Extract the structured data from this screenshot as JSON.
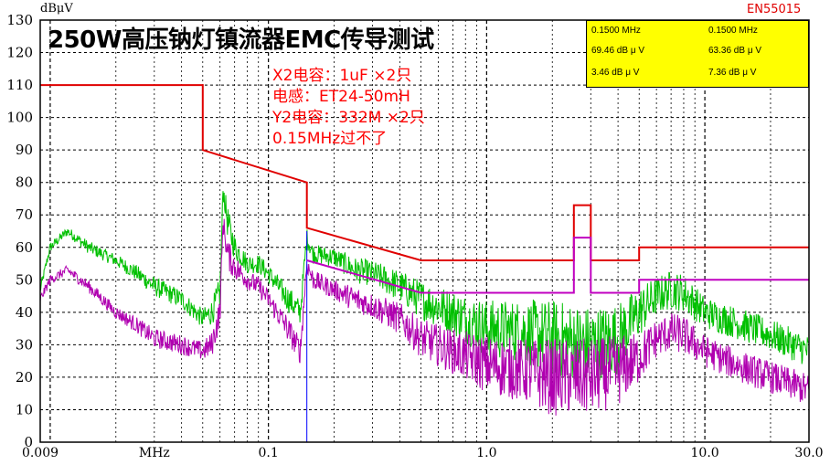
{
  "header": {
    "unit_label": "dBμV",
    "title": "250W高压钠灯镇流器EMC传导测试",
    "standard": "EN55015"
  },
  "annotation": {
    "lines": [
      "X2电容：1uF ×2只",
      "电感：ET24-50mH",
      "Y2电容：332M ×2只",
      "0.15MHz过不了"
    ]
  },
  "marker_box": {
    "col1": [
      "0.1500 MHz",
      "69.46 dB μ V",
      "3.46 dB μ V"
    ],
    "col2": [
      "0.1500 MHz",
      "63.36 dB μ V",
      "7.36 dB μ V"
    ]
  },
  "colors": {
    "qp_limit": "#e00000",
    "avg_limit": "#c000c0",
    "qp_trace": "#00c000",
    "avg_trace": "#b000b0",
    "marker_line": "#0000ff",
    "marker_box_bg": "#ffff00"
  },
  "chart_data": {
    "type": "line",
    "x_scale": "log",
    "xlim": [
      0.009,
      30.0
    ],
    "ylim": [
      0,
      130
    ],
    "yticks": [
      0,
      10,
      20,
      30,
      40,
      50,
      60,
      70,
      80,
      90,
      100,
      110,
      120,
      130
    ],
    "xtick_labels": [
      {
        "x": 0.009,
        "label": "0.009"
      },
      {
        "x": 0.03,
        "label": "MHz"
      },
      {
        "x": 0.1,
        "label": "0.1"
      },
      {
        "x": 1.0,
        "label": "1.0"
      },
      {
        "x": 10.0,
        "label": "10.0"
      },
      {
        "x": 30.0,
        "label": "30.0"
      }
    ],
    "grid": true,
    "marker_x": 0.15,
    "series": [
      {
        "key": "qp_limit",
        "type": "step",
        "points": [
          [
            0.009,
            110
          ],
          [
            0.05,
            110
          ],
          [
            0.05,
            90
          ],
          [
            0.15,
            80
          ],
          [
            0.15,
            66
          ],
          [
            0.5,
            56
          ],
          [
            2.51,
            56
          ],
          [
            2.51,
            73
          ],
          [
            3.0,
            73
          ],
          [
            3.0,
            56
          ],
          [
            5.0,
            56
          ],
          [
            5.0,
            60
          ],
          [
            30.0,
            60
          ]
        ]
      },
      {
        "key": "avg_limit",
        "type": "step",
        "points": [
          [
            0.15,
            56
          ],
          [
            0.5,
            46
          ],
          [
            2.51,
            46
          ],
          [
            2.51,
            63
          ],
          [
            3.0,
            63
          ],
          [
            3.0,
            46
          ],
          [
            5.0,
            46
          ],
          [
            5.0,
            50
          ],
          [
            30.0,
            50
          ]
        ]
      },
      {
        "key": "qp_trace",
        "type": "trace",
        "points": [
          [
            0.009,
            47
          ],
          [
            0.01,
            60
          ],
          [
            0.012,
            65
          ],
          [
            0.015,
            60
          ],
          [
            0.02,
            56
          ],
          [
            0.025,
            52
          ],
          [
            0.03,
            48
          ],
          [
            0.04,
            44
          ],
          [
            0.05,
            38
          ],
          [
            0.055,
            40
          ],
          [
            0.06,
            46
          ],
          [
            0.062,
            78
          ],
          [
            0.065,
            68
          ],
          [
            0.07,
            60
          ],
          [
            0.08,
            55
          ],
          [
            0.09,
            55
          ],
          [
            0.1,
            52
          ],
          [
            0.12,
            45
          ],
          [
            0.14,
            40
          ],
          [
            0.15,
            63
          ],
          [
            0.16,
            58
          ],
          [
            0.2,
            57
          ],
          [
            0.25,
            53
          ],
          [
            0.3,
            52
          ],
          [
            0.4,
            48
          ],
          [
            0.5,
            44
          ],
          [
            0.7,
            40
          ],
          [
            1.0,
            35
          ],
          [
            1.5,
            34
          ],
          [
            2.0,
            32
          ],
          [
            3.0,
            30
          ],
          [
            4.0,
            32
          ],
          [
            5.0,
            40
          ],
          [
            6.0,
            45
          ],
          [
            7.0,
            47
          ],
          [
            8.0,
            46
          ],
          [
            10.0,
            40
          ],
          [
            15.0,
            36
          ],
          [
            20.0,
            33
          ],
          [
            30.0,
            28
          ]
        ],
        "noise": [
          1.5,
          1.5,
          1.5,
          2,
          2,
          2.5,
          3,
          3,
          3,
          4,
          5,
          3,
          5,
          4,
          3,
          3,
          3,
          4,
          4,
          3,
          3,
          3,
          4,
          4,
          5,
          6,
          7,
          9,
          10,
          12,
          12,
          11,
          8,
          6,
          6,
          6,
          5,
          5,
          5,
          5
        ]
      },
      {
        "key": "avg_trace",
        "type": "trace",
        "points": [
          [
            0.009,
            44
          ],
          [
            0.01,
            50
          ],
          [
            0.012,
            53
          ],
          [
            0.015,
            48
          ],
          [
            0.02,
            40
          ],
          [
            0.025,
            36
          ],
          [
            0.03,
            32
          ],
          [
            0.04,
            30
          ],
          [
            0.05,
            28
          ],
          [
            0.055,
            30
          ],
          [
            0.06,
            40
          ],
          [
            0.062,
            68
          ],
          [
            0.065,
            58
          ],
          [
            0.07,
            54
          ],
          [
            0.08,
            50
          ],
          [
            0.09,
            48
          ],
          [
            0.1,
            44
          ],
          [
            0.12,
            36
          ],
          [
            0.14,
            28
          ],
          [
            0.15,
            55
          ],
          [
            0.16,
            50
          ],
          [
            0.2,
            47
          ],
          [
            0.25,
            44
          ],
          [
            0.3,
            42
          ],
          [
            0.4,
            38
          ],
          [
            0.5,
            32
          ],
          [
            0.7,
            28
          ],
          [
            1.0,
            24
          ],
          [
            1.5,
            22
          ],
          [
            2.0,
            20
          ],
          [
            3.0,
            20
          ],
          [
            4.0,
            22
          ],
          [
            5.0,
            26
          ],
          [
            6.0,
            32
          ],
          [
            7.0,
            34
          ],
          [
            8.0,
            33
          ],
          [
            10.0,
            28
          ],
          [
            15.0,
            23
          ],
          [
            20.0,
            20
          ],
          [
            30.0,
            16
          ]
        ],
        "noise": [
          1.5,
          1.5,
          1.5,
          2,
          2,
          2.5,
          3,
          3,
          3,
          4,
          5,
          3,
          5,
          4,
          3,
          3,
          3,
          4,
          4,
          3,
          3,
          3,
          4,
          4,
          5,
          6,
          7,
          9,
          10,
          12,
          12,
          11,
          8,
          6,
          6,
          6,
          5,
          5,
          5,
          5
        ]
      }
    ]
  }
}
